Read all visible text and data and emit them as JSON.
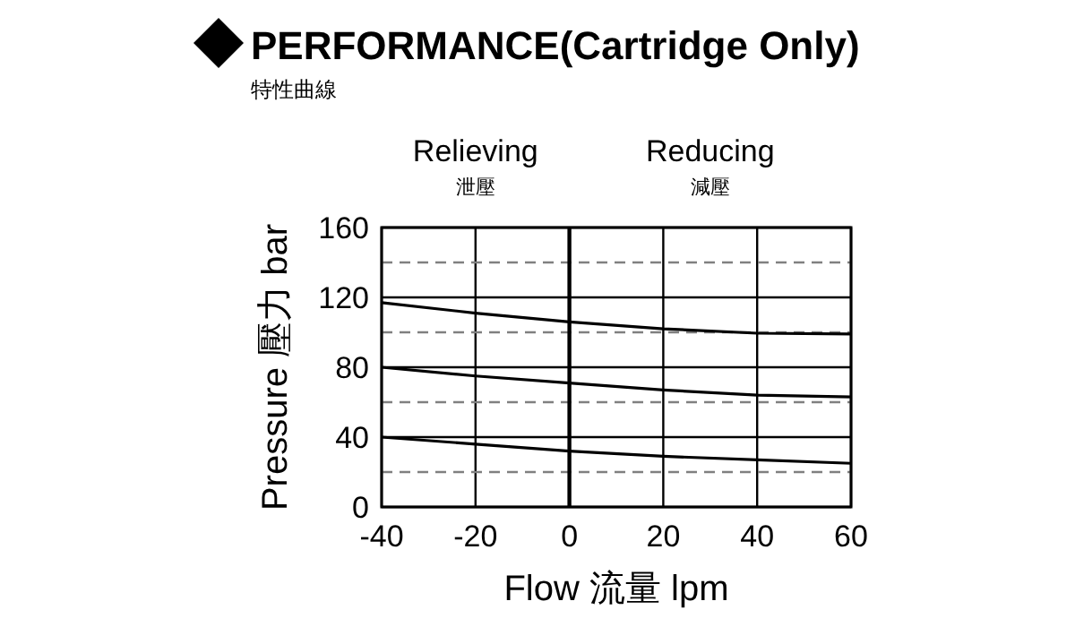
{
  "chart_data": {
    "type": "line",
    "title": "PERFORMANCE(Cartridge Only)",
    "subtitle": "特性曲線",
    "xlabel": "Flow 流量 lpm",
    "ylabel": "Pressure 壓力 bar",
    "annotations": [
      "Relieving",
      "泄壓",
      "Reducing",
      "減壓"
    ],
    "x": [
      -40,
      -20,
      0,
      20,
      40,
      60
    ],
    "series": [
      {
        "color": "#000000",
        "values": [
          117,
          111,
          106,
          102,
          99.5,
          99
        ]
      },
      {
        "color": "#000000",
        "values": [
          80,
          75,
          71,
          67,
          64,
          63
        ]
      },
      {
        "color": "#000000",
        "values": [
          40,
          36,
          32,
          29,
          27,
          25
        ]
      }
    ],
    "xlim": [
      -40,
      60
    ],
    "xticks": [
      -40,
      -20,
      0,
      20,
      40,
      60
    ],
    "ylim": [
      0,
      160
    ],
    "yticks": [
      0,
      40,
      80,
      120,
      160
    ],
    "grid": true,
    "marker": "none",
    "line_style": "solid",
    "ref_lines": [
      {
        "axis": "y",
        "value": 20,
        "color": "#808080",
        "line_style": "dashed"
      },
      {
        "axis": "y",
        "value": 60,
        "color": "#808080",
        "line_style": "dashed"
      },
      {
        "axis": "y",
        "value": 100,
        "color": "#808080",
        "line_style": "dashed"
      },
      {
        "axis": "y",
        "value": 140,
        "color": "#808080",
        "line_style": "dashed"
      },
      {
        "axis": "x",
        "value": 0,
        "color": "#000000",
        "line_style": "solid"
      }
    ]
  }
}
